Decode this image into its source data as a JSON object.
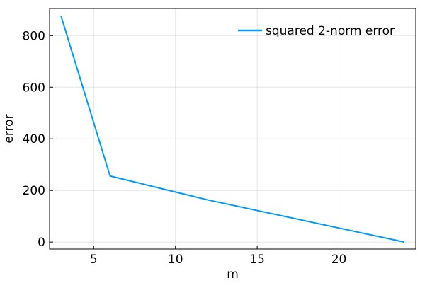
{
  "chart_data": {
    "type": "line",
    "xlabel": "m",
    "ylabel": "error",
    "xlim": [
      2.3,
      24.7
    ],
    "ylim": [
      -27,
      905
    ],
    "xticks": [
      5,
      10,
      15,
      20
    ],
    "yticks": [
      0,
      200,
      400,
      600,
      800
    ],
    "grid": true,
    "legend_position": "top-right",
    "series": [
      {
        "name": "squared 2-norm error",
        "color": "#009AFA",
        "x": [
          3,
          6,
          12,
          24
        ],
        "y": [
          876,
          256,
          163,
          0
        ]
      }
    ]
  }
}
